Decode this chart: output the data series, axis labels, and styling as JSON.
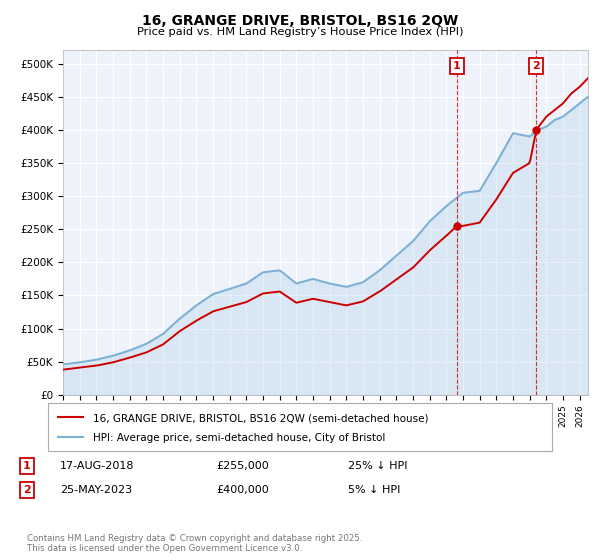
{
  "title": "16, GRANGE DRIVE, BRISTOL, BS16 2QW",
  "subtitle": "Price paid vs. HM Land Registry’s House Price Index (HPI)",
  "red_label": "16, GRANGE DRIVE, BRISTOL, BS16 2QW (semi-detached house)",
  "blue_label": "HPI: Average price, semi-detached house, City of Bristol",
  "annotation1_date": "17-AUG-2018",
  "annotation1_price": "£255,000",
  "annotation1_pct": "25% ↓ HPI",
  "annotation2_date": "25-MAY-2023",
  "annotation2_price": "£400,000",
  "annotation2_pct": "5% ↓ HPI",
  "copyright": "Contains HM Land Registry data © Crown copyright and database right 2025.\nThis data is licensed under the Open Government Licence v3.0.",
  "ylim": [
    0,
    520000
  ],
  "yticks": [
    0,
    50000,
    100000,
    150000,
    200000,
    250000,
    300000,
    350000,
    400000,
    450000,
    500000
  ],
  "ytick_labels": [
    "£0",
    "£50K",
    "£100K",
    "£150K",
    "£200K",
    "£250K",
    "£300K",
    "£350K",
    "£400K",
    "£450K",
    "£500K"
  ],
  "red_color": "#cc0000",
  "blue_color": "#7ab0d4",
  "point1_x": 2018.63,
  "point1_y": 255000,
  "point2_x": 2023.4,
  "point2_y": 400000,
  "vline1_x": 2018.63,
  "vline2_x": 2023.4,
  "xmin": 1995,
  "xmax": 2026.5,
  "hpi_years": [
    1995,
    1996,
    1997,
    1998,
    1999,
    2000,
    2001,
    2002,
    2003,
    2004,
    2005,
    2006,
    2007,
    2008,
    2009,
    2010,
    2011,
    2012,
    2013,
    2014,
    2015,
    2016,
    2017,
    2018,
    2018.5,
    2019,
    2020,
    2021,
    2022,
    2023,
    2023.5,
    2024,
    2024.5,
    2025,
    2025.5,
    2026,
    2026.5
  ],
  "hpi_values": [
    46000,
    49000,
    53000,
    59000,
    67000,
    77000,
    92000,
    115000,
    135000,
    152000,
    160000,
    168000,
    185000,
    188000,
    168000,
    175000,
    168000,
    163000,
    170000,
    188000,
    210000,
    232000,
    262000,
    285000,
    295000,
    305000,
    308000,
    350000,
    395000,
    390000,
    400000,
    405000,
    415000,
    420000,
    430000,
    440000,
    450000
  ],
  "red_years": [
    1995,
    1996,
    1997,
    1998,
    1999,
    2000,
    2001,
    2002,
    2003,
    2004,
    2005,
    2006,
    2007,
    2008,
    2009,
    2010,
    2011,
    2012,
    2013,
    2014,
    2015,
    2016,
    2017,
    2018,
    2018.63,
    2019,
    2020,
    2021,
    2022,
    2023,
    2023.4,
    2024,
    2024.5,
    2025,
    2025.5,
    2026,
    2026.5
  ],
  "red_values": [
    38000,
    41000,
    44000,
    49000,
    56000,
    64000,
    76000,
    96000,
    112000,
    126000,
    133000,
    140000,
    153000,
    156000,
    139000,
    145000,
    140000,
    135000,
    141000,
    156000,
    174000,
    192000,
    218000,
    240000,
    255000,
    255000,
    260000,
    295000,
    335000,
    350000,
    400000,
    420000,
    430000,
    440000,
    455000,
    465000,
    478000
  ]
}
